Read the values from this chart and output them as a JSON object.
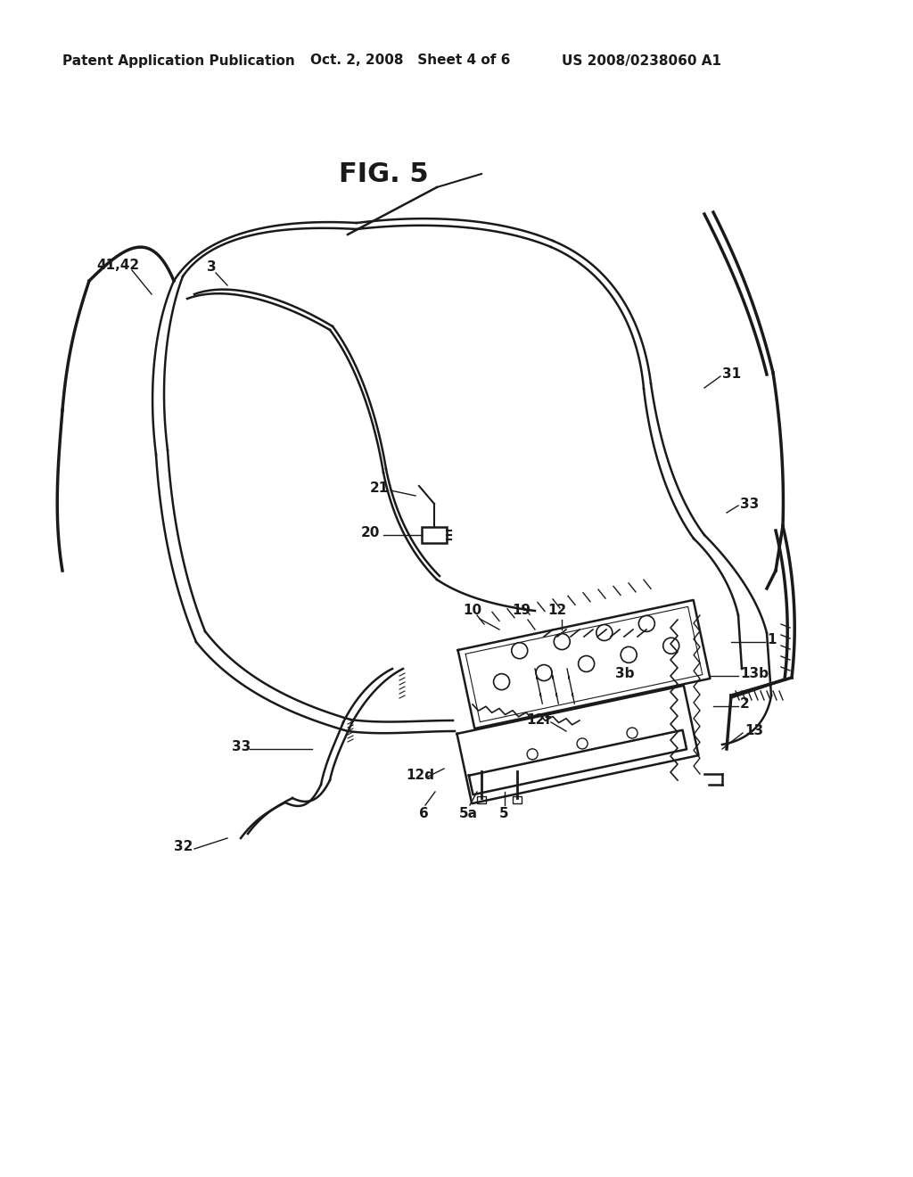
{
  "title": "FIG. 5",
  "header_left": "Patent Application Publication",
  "header_middle": "Oct. 2, 2008   Sheet 4 of 6",
  "header_right": "US 2008/0238060 A1",
  "background_color": "#ffffff",
  "line_color": "#1a1a1a",
  "label_color": "#1a1a1a",
  "fig_title_fontsize": 22,
  "header_fontsize": 11,
  "label_fontsize": 11
}
